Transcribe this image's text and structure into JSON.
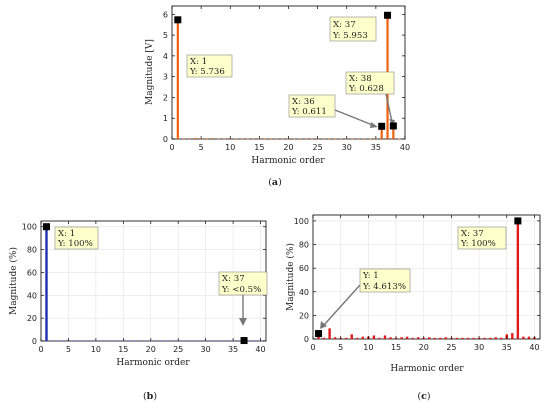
{
  "chart_data": [
    {
      "type": "bar",
      "panel_label_bold": "a",
      "xlabel": "Harmonic order",
      "ylabel": "Magnitude [V]",
      "xlim": [
        0,
        40
      ],
      "ylim": [
        0,
        6.4
      ],
      "xticks": [
        0,
        5,
        10,
        15,
        20,
        25,
        30,
        35,
        40
      ],
      "yticks": [
        0,
        1,
        2,
        3,
        4,
        5,
        6
      ],
      "bar_color": "#ee6010",
      "x": [
        1,
        2,
        3,
        4,
        5,
        6,
        7,
        8,
        9,
        10,
        11,
        12,
        13,
        14,
        15,
        16,
        17,
        18,
        19,
        20,
        21,
        22,
        23,
        24,
        25,
        26,
        27,
        28,
        29,
        30,
        31,
        32,
        33,
        34,
        35,
        36,
        37,
        38,
        39
      ],
      "values": [
        5.736,
        0.02,
        0.03,
        0.05,
        0.02,
        0.03,
        0.04,
        0.02,
        0.02,
        0.03,
        0.02,
        0.02,
        0.02,
        0.02,
        0.02,
        0.02,
        0.02,
        0.02,
        0.02,
        0.02,
        0.02,
        0.02,
        0.02,
        0.02,
        0.02,
        0.02,
        0.02,
        0.02,
        0.02,
        0.02,
        0.02,
        0.02,
        0.02,
        0.02,
        0.02,
        0.611,
        5.953,
        0.628,
        0.02
      ],
      "annotations": [
        {
          "x": 1,
          "y": 5.736,
          "line1": "X: 1",
          "line2": "Y: 5.736"
        },
        {
          "x": 37,
          "y": 5.953,
          "line1": "X: 37",
          "line2": "Y: 5.953"
        },
        {
          "x": 38,
          "y": 0.628,
          "line1": "X: 38",
          "line2": "Y: 0.628"
        },
        {
          "x": 36,
          "y": 0.611,
          "line1": "X: 36",
          "line2": "Y: 0.611"
        }
      ]
    },
    {
      "type": "bar",
      "panel_label_bold": "b",
      "xlabel": "Harmonic order",
      "ylabel": "Magnitude (%)",
      "xlim": [
        0,
        41
      ],
      "ylim": [
        0,
        105
      ],
      "xticks": [
        0,
        5,
        10,
        15,
        20,
        25,
        30,
        35,
        40
      ],
      "yticks": [
        0,
        20,
        40,
        60,
        80,
        100
      ],
      "bar_color": "#1f2fb0",
      "x": [
        1,
        2,
        3,
        4,
        5,
        6,
        7,
        8,
        9,
        10,
        11,
        12,
        13,
        14,
        15,
        16,
        17,
        18,
        19,
        20,
        21,
        22,
        23,
        24,
        25,
        26,
        27,
        28,
        29,
        30,
        31,
        32,
        33,
        34,
        35,
        36,
        37,
        38,
        39,
        40
      ],
      "values": [
        100,
        0.3,
        0.4,
        0.3,
        0.5,
        0.3,
        0.4,
        0.3,
        0.3,
        0.3,
        0.3,
        0.3,
        0.3,
        0.3,
        0.3,
        0.3,
        0.3,
        0.3,
        0.3,
        0.3,
        0.3,
        0.3,
        0.3,
        0.3,
        0.3,
        0.3,
        0.3,
        0.3,
        0.3,
        0.3,
        0.3,
        0.3,
        0.3,
        0.3,
        0.3,
        0.3,
        0.4,
        0.3,
        0.3,
        0.3
      ],
      "annotations": [
        {
          "x": 1,
          "y": 100,
          "line1": "X: 1",
          "line2": "Y: 100%"
        },
        {
          "x": 37,
          "y": 3,
          "line1": "X: 37",
          "line2": "Y: <0.5%"
        }
      ]
    },
    {
      "type": "bar",
      "panel_label_bold": "c",
      "xlabel": "Harmonic order",
      "ylabel": "Magnitude (%)",
      "xlim": [
        0,
        41
      ],
      "ylim": [
        0,
        105
      ],
      "xticks": [
        0,
        5,
        10,
        15,
        20,
        25,
        30,
        35,
        40
      ],
      "yticks": [
        0,
        20,
        40,
        60,
        80,
        100
      ],
      "bar_color": "#e01a1a",
      "x": [
        1,
        2,
        3,
        4,
        5,
        6,
        7,
        8,
        9,
        10,
        11,
        12,
        13,
        14,
        15,
        16,
        17,
        18,
        19,
        20,
        21,
        22,
        23,
        24,
        25,
        26,
        27,
        28,
        29,
        30,
        31,
        32,
        33,
        34,
        35,
        36,
        37,
        38,
        39,
        40
      ],
      "values": [
        4.613,
        1,
        9,
        1.5,
        1,
        1,
        4,
        1,
        2,
        2,
        3,
        1,
        3,
        1.5,
        1,
        1.5,
        2,
        1,
        1.5,
        1,
        1.5,
        1,
        1,
        1.5,
        1,
        1,
        1,
        1,
        1,
        1,
        1,
        1,
        1.5,
        1,
        4,
        5,
        100,
        2,
        2,
        1.5
      ],
      "annotations": [
        {
          "x": 37,
          "y": 100,
          "line1": "X: 37",
          "line2": "Y: 100%"
        },
        {
          "x": 1,
          "y": 4.613,
          "line1": "Y: 1",
          "line2": "Y: 4.613%"
        }
      ]
    }
  ]
}
